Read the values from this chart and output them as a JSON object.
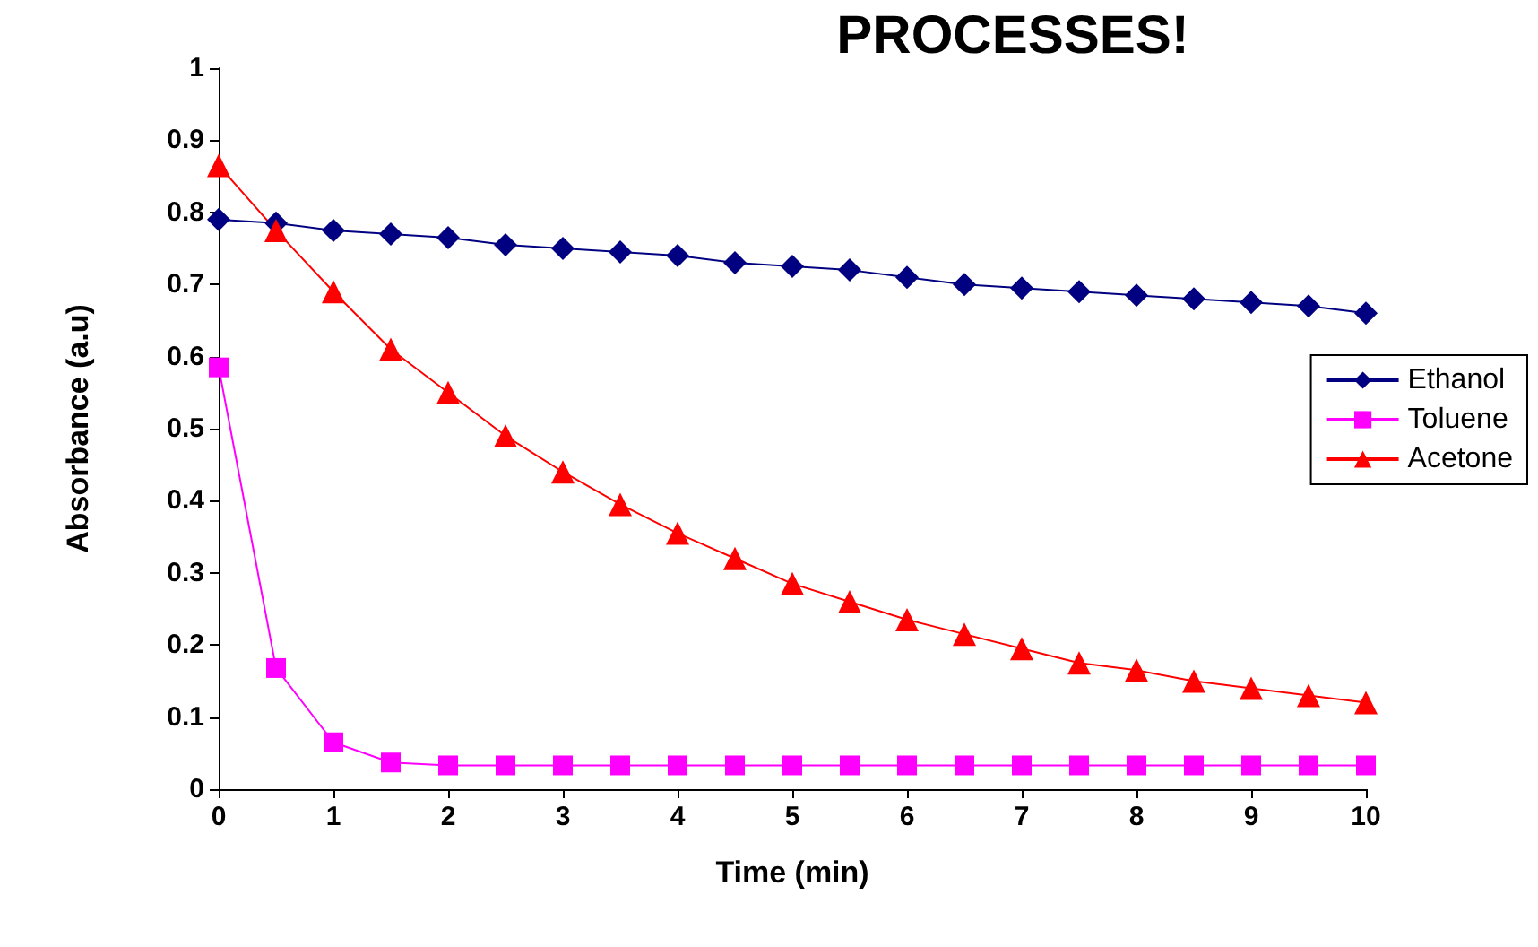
{
  "chart_data": {
    "type": "line",
    "title": "PROCESSES!",
    "xlabel": "Time (min)",
    "ylabel": "Absorbance (a.u)",
    "x": [
      0,
      0.5,
      1,
      1.5,
      2,
      2.5,
      3,
      3.5,
      4,
      4.5,
      5,
      5.5,
      6,
      6.5,
      7,
      7.5,
      8,
      8.5,
      9,
      9.5,
      10
    ],
    "series": [
      {
        "name": "Ethanol",
        "color": "#000080",
        "marker": "diamond",
        "values": [
          0.79,
          0.785,
          0.775,
          0.77,
          0.765,
          0.755,
          0.75,
          0.745,
          0.74,
          0.73,
          0.725,
          0.72,
          0.71,
          0.7,
          0.695,
          0.69,
          0.685,
          0.68,
          0.675,
          0.67,
          0.66
        ]
      },
      {
        "name": "Toluene",
        "color": "#ff00ff",
        "marker": "square",
        "values": [
          0.585,
          0.168,
          0.065,
          0.037,
          0.033,
          0.033,
          0.033,
          0.033,
          0.033,
          0.033,
          0.033,
          0.033,
          0.033,
          0.033,
          0.033,
          0.033,
          0.033,
          0.033,
          0.033,
          0.033,
          0.033
        ]
      },
      {
        "name": "Acetone",
        "color": "#ff0000",
        "marker": "triangle",
        "values": [
          0.865,
          0.775,
          0.69,
          0.61,
          0.55,
          0.49,
          0.44,
          0.395,
          0.355,
          0.32,
          0.285,
          0.26,
          0.235,
          0.215,
          0.195,
          0.175,
          0.165,
          0.15,
          0.14,
          0.13,
          0.12
        ]
      }
    ],
    "xlim": [
      0,
      10
    ],
    "xticks": [
      0,
      1,
      2,
      3,
      4,
      5,
      6,
      7,
      8,
      9,
      10
    ],
    "ylim": [
      0,
      1
    ],
    "yticks": [
      0,
      0.1,
      0.2,
      0.3,
      0.4,
      0.5,
      0.6,
      0.7,
      0.8,
      0.9,
      1
    ],
    "grid": false,
    "legend": "right"
  }
}
